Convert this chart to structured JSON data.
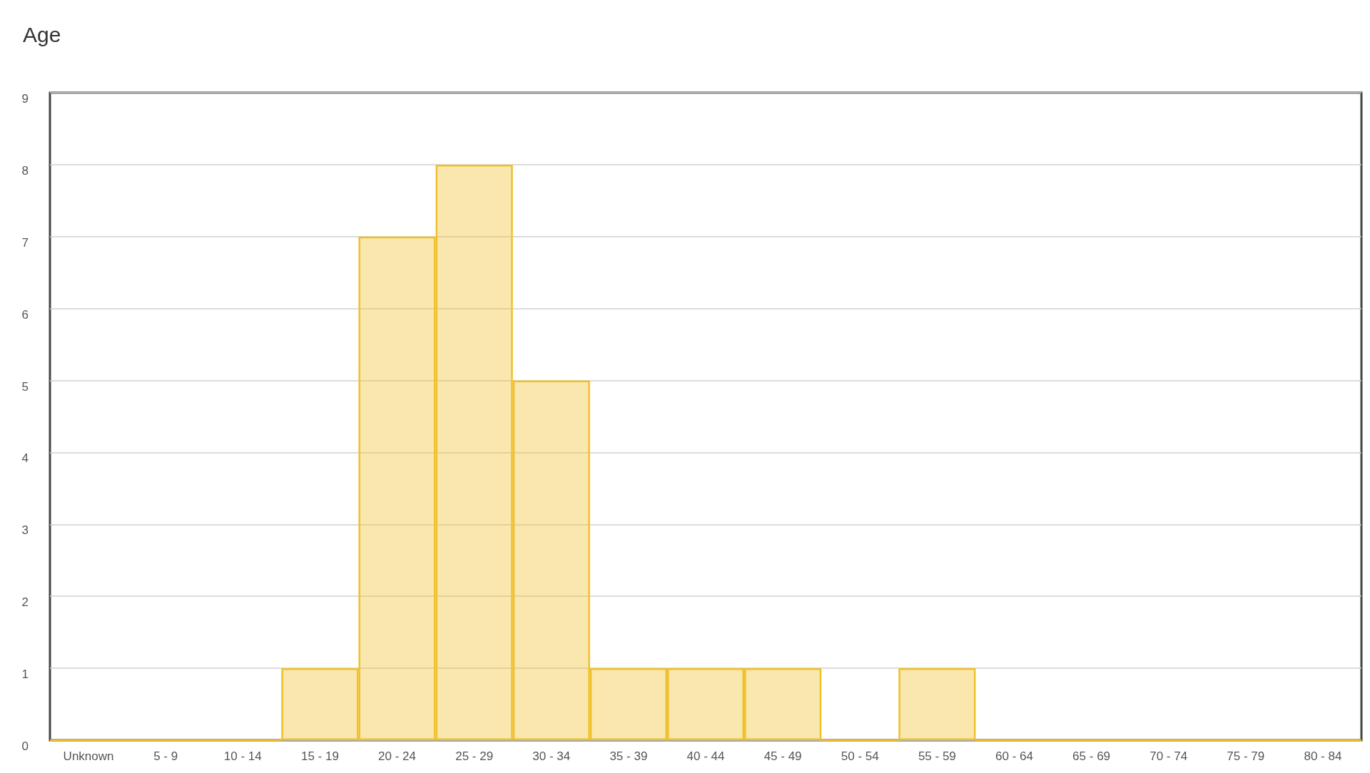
{
  "chart_data": {
    "type": "bar",
    "title": "Age",
    "categories": [
      "Unknown",
      "5 - 9",
      "10 - 14",
      "15 - 19",
      "20 - 24",
      "25 - 29",
      "30 - 34",
      "35 - 39",
      "40 - 44",
      "45 - 49",
      "50 - 54",
      "55 - 59",
      "60 - 64",
      "65 - 69",
      "70 - 74",
      "75 - 79",
      "80 - 84"
    ],
    "values": [
      0,
      0,
      0,
      1,
      7,
      8,
      5,
      1,
      1,
      1,
      0,
      1,
      0,
      0,
      0,
      0,
      0
    ],
    "color": "#f0c02a",
    "ylim": [
      0,
      9
    ],
    "yticks": [
      0,
      1,
      2,
      3,
      4,
      5,
      6,
      7,
      8,
      9
    ],
    "grid": "y"
  }
}
